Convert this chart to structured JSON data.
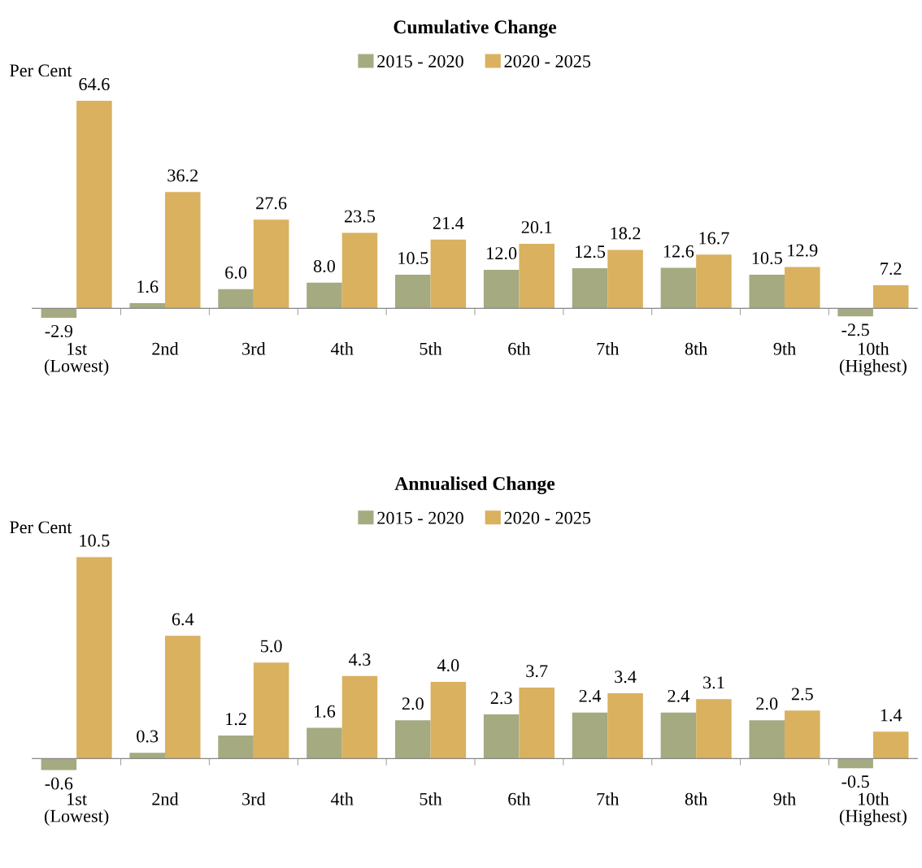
{
  "chart_data": [
    {
      "type": "bar",
      "title": "Cumulative Change",
      "ylabel": "Per Cent",
      "categories": [
        "1st\n(Lowest)",
        "2nd",
        "3rd",
        "4th",
        "5th",
        "6th",
        "7th",
        "8th",
        "9th",
        "10th\n(Highest)"
      ],
      "legend": "top",
      "grid": false,
      "series": [
        {
          "name": "2015 - 2020",
          "color": "#a5aa80",
          "values": [
            -2.9,
            1.6,
            6.0,
            8.0,
            10.5,
            12.0,
            12.5,
            12.6,
            10.5,
            -2.5
          ],
          "value_labels": [
            "-2.9",
            "1.6",
            "6.0",
            "8.0",
            "10.5",
            "12.0",
            "12.5",
            "12.6",
            "10.5",
            "-2.5"
          ]
        },
        {
          "name": "2020 - 2025",
          "color": "#d9b15f",
          "values": [
            64.6,
            36.2,
            27.6,
            23.5,
            21.4,
            20.1,
            18.2,
            16.7,
            12.9,
            7.2
          ],
          "value_labels": [
            "64.6",
            "36.2",
            "27.6",
            "23.5",
            "21.4",
            "20.1",
            "18.2",
            "16.7",
            "12.9",
            "7.2"
          ]
        }
      ]
    },
    {
      "type": "bar",
      "title": "Annualised Change",
      "ylabel": "Per Cent",
      "categories": [
        "1st\n(Lowest)",
        "2nd",
        "3rd",
        "4th",
        "5th",
        "6th",
        "7th",
        "8th",
        "9th",
        "10th\n(Highest)"
      ],
      "legend": "top",
      "grid": false,
      "series": [
        {
          "name": "2015 - 2020",
          "color": "#a5aa80",
          "values": [
            -0.6,
            0.3,
            1.2,
            1.6,
            2.0,
            2.3,
            2.4,
            2.4,
            2.0,
            -0.5
          ],
          "value_labels": [
            "-0.6",
            "0.3",
            "1.2",
            "1.6",
            "2.0",
            "2.3",
            "2.4",
            "2.4",
            "2.0",
            "-0.5"
          ]
        },
        {
          "name": "2020 - 2025",
          "color": "#d9b15f",
          "values": [
            10.5,
            6.4,
            5.0,
            4.3,
            4.0,
            3.7,
            3.4,
            3.1,
            2.5,
            1.4
          ],
          "value_labels": [
            "10.5",
            "6.4",
            "5.0",
            "4.3",
            "4.0",
            "3.7",
            "3.4",
            "3.1",
            "2.5",
            "1.4"
          ]
        }
      ]
    }
  ]
}
